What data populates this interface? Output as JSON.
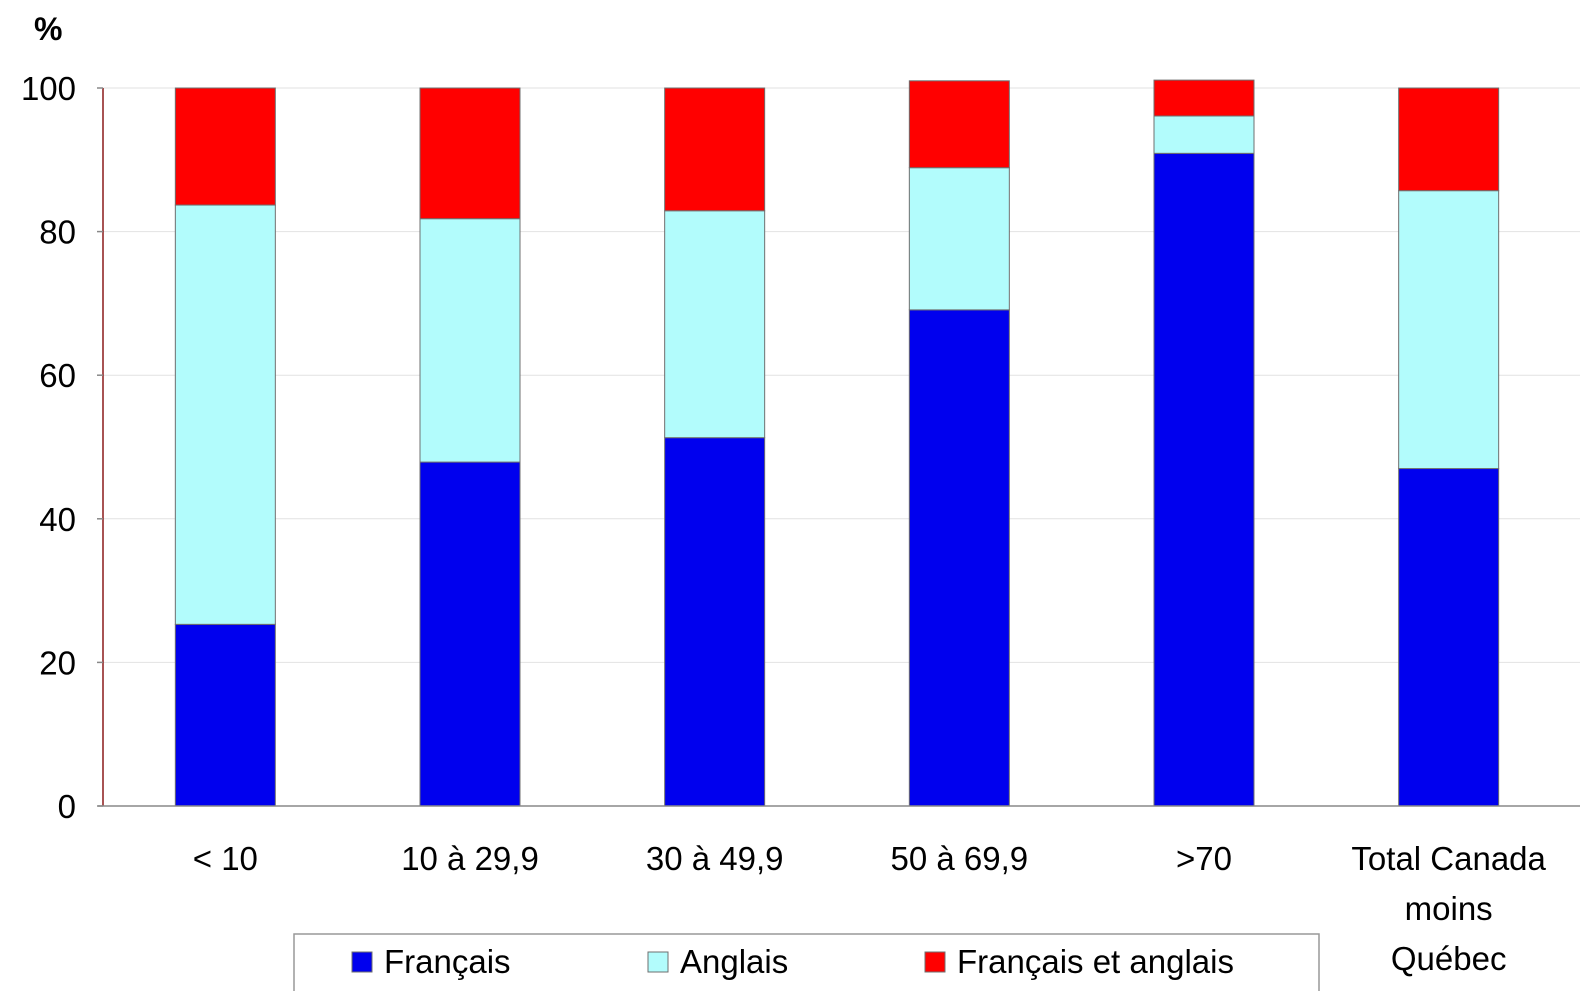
{
  "chart_data": {
    "type": "bar",
    "stacked": true,
    "ylabel": "%",
    "ylim": [
      0,
      100
    ],
    "yticks": [
      "0",
      "20",
      "40",
      "60",
      "80",
      "100"
    ],
    "grid": true,
    "legend_position": "bottom",
    "categories": [
      [
        "< 10"
      ],
      [
        "10 à 29,9"
      ],
      [
        "30 à 49,9"
      ],
      [
        "50 à 69,9"
      ],
      [
        ">70"
      ],
      [
        "Total Canada",
        "moins",
        "Québec"
      ]
    ],
    "series": [
      {
        "name": "Français",
        "color": "#0000ee",
        "values": [
          25.3,
          47.9,
          51.3,
          69.1,
          90.9,
          47.0
        ]
      },
      {
        "name": "Anglais",
        "color": "#b2fcfc",
        "values": [
          58.4,
          33.9,
          31.6,
          19.8,
          5.2,
          38.7
        ]
      },
      {
        "name": "Français et anglais",
        "color": "#ff0000",
        "values": [
          16.3,
          18.2,
          17.1,
          12.1,
          5.0,
          14.3
        ]
      }
    ]
  }
}
